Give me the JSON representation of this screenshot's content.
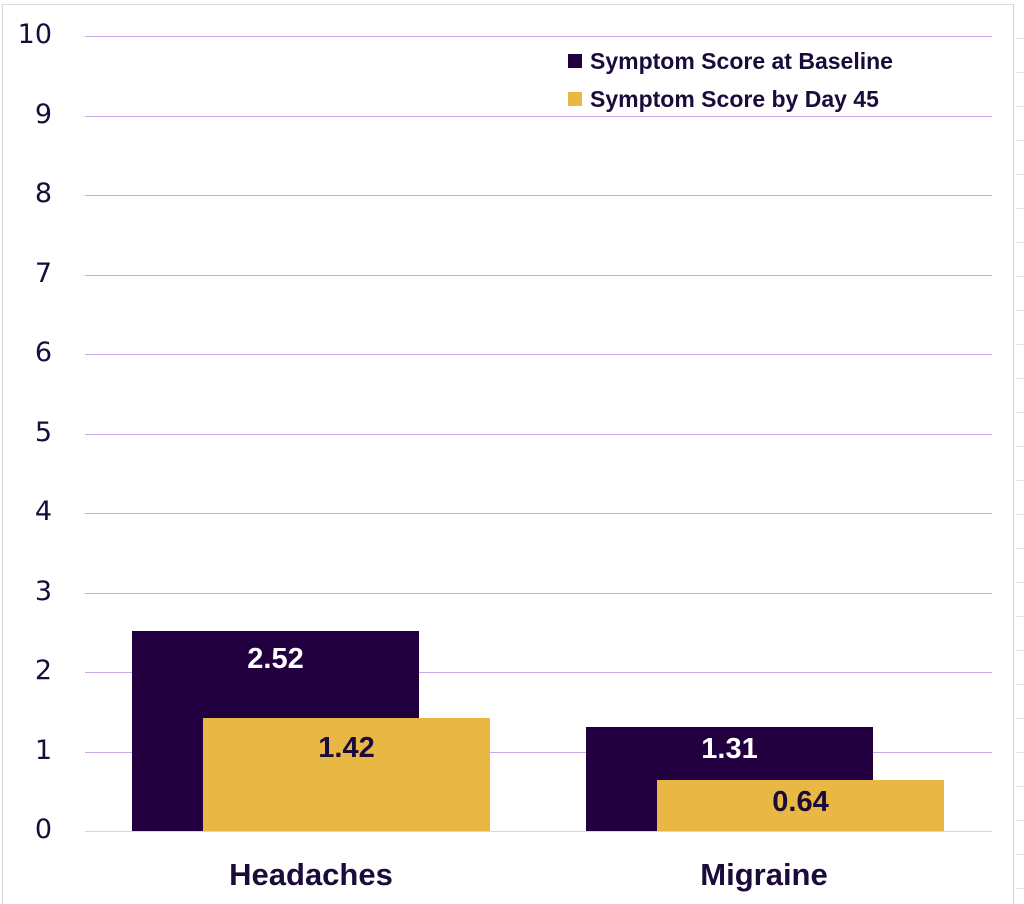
{
  "chart_data": {
    "type": "bar",
    "title": "",
    "xlabel": "",
    "ylabel": "",
    "categories": [
      "Headaches",
      "Migraine"
    ],
    "series": [
      {
        "name": "Symptom Score at Baseline",
        "color": "#22003f",
        "label_color": "#ffffff",
        "values": [
          2.52,
          1.31
        ],
        "labels": [
          "2.52",
          "1.31"
        ]
      },
      {
        "name": "Symptom Score by Day 45",
        "color": "#e9b744",
        "label_color": "#1a0b3b",
        "values": [
          1.42,
          0.64
        ],
        "labels": [
          "1.42",
          "0.64"
        ]
      }
    ],
    "ylim": [
      0,
      10
    ],
    "yticks": [
      "0",
      "1",
      "2",
      "3",
      "4",
      "5",
      "6",
      "7",
      "8",
      "9",
      "10"
    ],
    "grid": true,
    "grid_color": "#c9a8e6",
    "legend_position": "top-right",
    "bar_layout": "overlapping"
  },
  "legend": {
    "items": [
      {
        "label": "Symptom Score at Baseline",
        "color": "#22003f"
      },
      {
        "label": "Symptom Score by Day 45",
        "color": "#e9b744"
      }
    ]
  }
}
